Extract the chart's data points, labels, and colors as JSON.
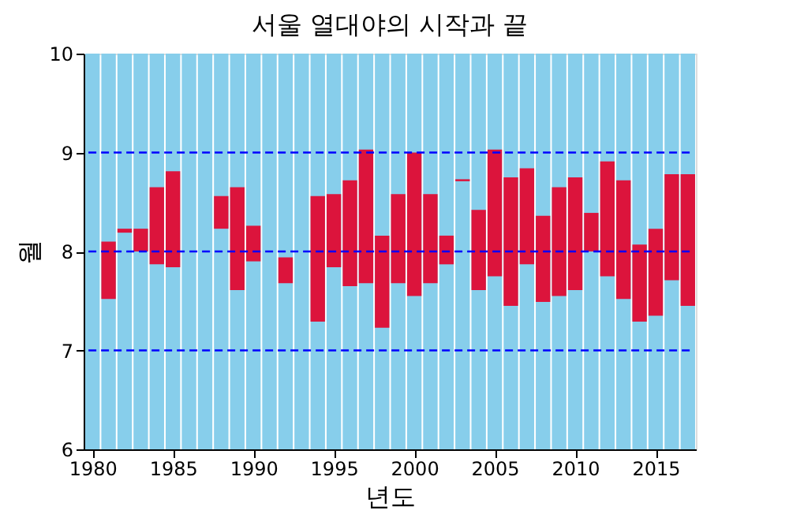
{
  "chart_data": {
    "type": "bar",
    "title": "서울 열대야의 시작과 끝",
    "xlabel": "년도",
    "ylabel": "월",
    "x": [
      1980,
      1981,
      1982,
      1983,
      1984,
      1985,
      1986,
      1987,
      1988,
      1989,
      1990,
      1991,
      1992,
      1993,
      1994,
      1995,
      1996,
      1997,
      1998,
      1999,
      2000,
      2001,
      2002,
      2003,
      2004,
      2005,
      2006,
      2007,
      2008,
      2009,
      2010,
      2011,
      2012,
      2013,
      2014,
      2015,
      2016,
      2017
    ],
    "series": [
      {
        "color": "#87ceeb",
        "base": [
          6,
          6,
          6,
          6,
          6,
          6,
          6,
          6,
          6,
          6,
          6,
          6,
          6,
          6,
          6,
          6,
          6,
          6,
          6,
          6,
          6,
          6,
          6,
          6,
          6,
          6,
          6,
          6,
          6,
          6,
          6,
          6,
          6,
          6,
          6,
          6,
          6,
          6
        ],
        "values": [
          4,
          4,
          4,
          4,
          4,
          4,
          4,
          4,
          4,
          4,
          4,
          4,
          4,
          4,
          4,
          4,
          4,
          4,
          4,
          4,
          4,
          4,
          4,
          4,
          4,
          4,
          4,
          4,
          4,
          4,
          4,
          4,
          4,
          4,
          4,
          4,
          4,
          4
        ]
      },
      {
        "color": "#dc143c",
        "base": [
          null,
          7.52,
          8.19,
          8.0,
          7.87,
          7.84,
          null,
          null,
          8.23,
          7.61,
          7.9,
          null,
          7.68,
          null,
          7.29,
          7.84,
          7.65,
          7.68,
          7.23,
          7.68,
          7.55,
          7.68,
          7.87,
          8.71,
          7.61,
          7.75,
          7.45,
          7.87,
          7.49,
          7.55,
          7.61,
          8.0,
          7.75,
          7.52,
          7.29,
          7.35,
          7.71,
          7.45
        ],
        "values": [
          null,
          0.58,
          0.04,
          0.23,
          0.78,
          0.97,
          null,
          null,
          0.33,
          1.04,
          0.36,
          null,
          0.26,
          null,
          1.27,
          0.74,
          1.07,
          1.35,
          0.93,
          0.9,
          1.45,
          0.9,
          0.29,
          0.02,
          0.81,
          1.28,
          1.3,
          0.97,
          0.87,
          1.1,
          1.14,
          0.39,
          1.16,
          1.2,
          0.78,
          0.88,
          1.07,
          1.33
        ]
      }
    ],
    "xlim": [
      1979.45,
      2017.5
    ],
    "xticks": [
      1980,
      1985,
      1990,
      1995,
      2000,
      2005,
      2010,
      2015
    ],
    "ylim": [
      6,
      10
    ],
    "yticks": [
      6,
      7,
      8,
      9,
      10
    ],
    "ref_lines": [
      {
        "axis": "y",
        "value": 7,
        "color": "#0000ff",
        "line_style": "dashed"
      },
      {
        "axis": "y",
        "value": 8,
        "color": "#0000ff",
        "line_style": "dashed"
      },
      {
        "axis": "y",
        "value": 9,
        "color": "#0000ff",
        "line_style": "dashed"
      }
    ],
    "grid": false
  }
}
